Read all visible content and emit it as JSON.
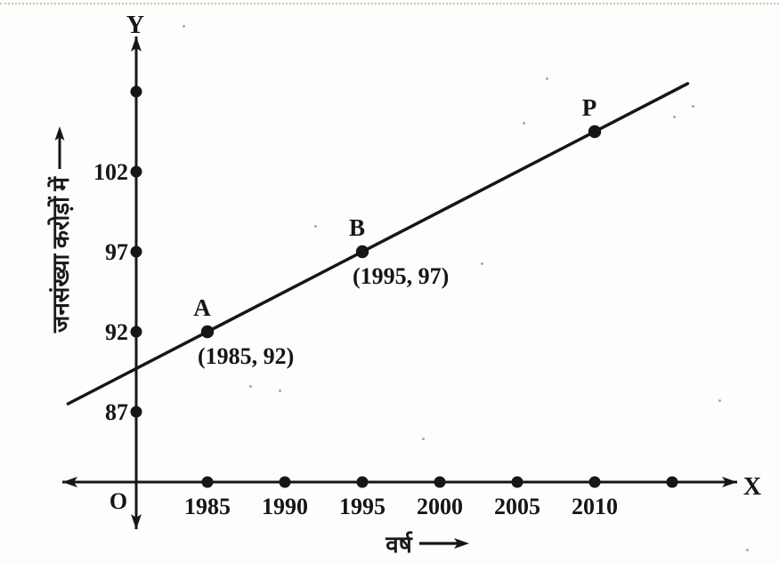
{
  "figure": {
    "axis_x_letter": "X",
    "axis_y_letter": "Y",
    "origin_label": "O"
  },
  "chart_data": {
    "type": "line",
    "title": "",
    "xlabel": "वर्ष",
    "ylabel": "जनसंख्या करोड़ों में",
    "x_ticks": [
      1985,
      1990,
      1995,
      2000,
      2005,
      2010
    ],
    "y_ticks": [
      87,
      92,
      97,
      102
    ],
    "x_unlabeled_dots": [
      2015
    ],
    "y_unlabeled_dots": [
      107
    ],
    "xlim": [
      1976,
      2016
    ],
    "ylim": [
      84,
      110
    ],
    "grid": false,
    "legend": false,
    "points": [
      {
        "name": "A",
        "x": 1985,
        "y": 92,
        "coord_label": "(1985, 92)"
      },
      {
        "name": "B",
        "x": 1995,
        "y": 97,
        "coord_label": "(1995, 97)"
      },
      {
        "name": "P",
        "x": 2010,
        "y": 104.5,
        "coord_label": ""
      }
    ],
    "line_extent_years": [
      1976,
      2016
    ],
    "ink_color": "#161616",
    "paper_color": "#fdfdfb"
  }
}
